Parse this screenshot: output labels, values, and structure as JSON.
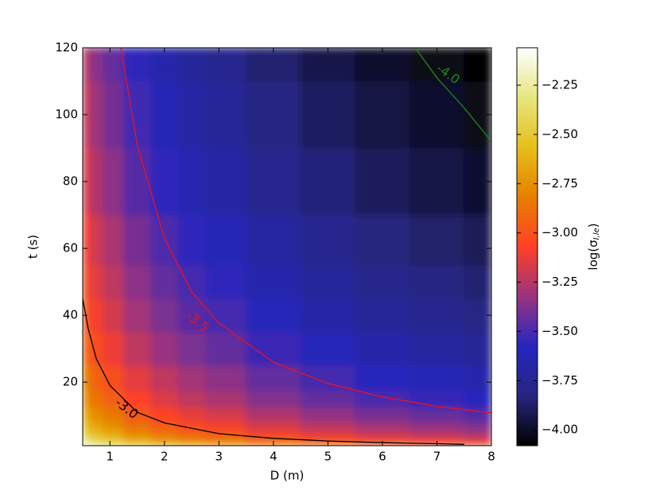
{
  "chart_data": {
    "type": "heatmap",
    "xlabel": "D (m)",
    "ylabel": "t (s)",
    "colorbar_label": [
      "log(σ",
      "I,le",
      ")"
    ],
    "x": [
      0.5,
      0.75,
      1,
      1.5,
      2,
      2.5,
      3,
      4,
      5,
      6,
      7,
      8
    ],
    "y": [
      1,
      2,
      3,
      5,
      7,
      10,
      15,
      20,
      30,
      40,
      50,
      60,
      80,
      100,
      120
    ],
    "z": [
      [
        -2.09,
        -2.21,
        -2.3,
        -2.42,
        -2.51,
        -2.58,
        -2.63,
        -2.72,
        -2.79,
        -2.85,
        -2.89,
        -2.93
      ],
      [
        -2.26,
        -2.38,
        -2.47,
        -2.59,
        -2.68,
        -2.75,
        -2.8,
        -2.89,
        -2.96,
        -3.02,
        -3.06,
        -3.1
      ],
      [
        -2.35,
        -2.47,
        -2.56,
        -2.68,
        -2.77,
        -2.84,
        -2.89,
        -2.98,
        -3.05,
        -3.11,
        -3.15,
        -3.19
      ],
      [
        -2.47,
        -2.59,
        -2.68,
        -2.8,
        -2.89,
        -2.96,
        -3.01,
        -3.1,
        -3.17,
        -3.23,
        -3.27,
        -3.31
      ],
      [
        -2.55,
        -2.67,
        -2.76,
        -2.88,
        -2.97,
        -3.04,
        -3.09,
        -3.18,
        -3.25,
        -3.31,
        -3.35,
        -3.39
      ],
      [
        -2.64,
        -2.76,
        -2.85,
        -2.97,
        -3.06,
        -3.13,
        -3.18,
        -3.27,
        -3.34,
        -3.4,
        -3.44,
        -3.48
      ],
      [
        -2.74,
        -2.86,
        -2.95,
        -3.07,
        -3.16,
        -3.23,
        -3.28,
        -3.37,
        -3.44,
        -3.5,
        -3.54,
        -3.58
      ],
      [
        -2.81,
        -2.93,
        -3.02,
        -3.14,
        -3.23,
        -3.3,
        -3.35,
        -3.44,
        -3.51,
        -3.57,
        -3.61,
        -3.65
      ],
      [
        -2.9,
        -3.02,
        -3.11,
        -3.23,
        -3.32,
        -3.39,
        -3.44,
        -3.53,
        -3.6,
        -3.66,
        -3.7,
        -3.74
      ],
      [
        -2.97,
        -3.09,
        -3.18,
        -3.3,
        -3.39,
        -3.46,
        -3.51,
        -3.6,
        -3.67,
        -3.73,
        -3.77,
        -3.81
      ],
      [
        -3.02,
        -3.14,
        -3.23,
        -3.35,
        -3.44,
        -3.51,
        -3.56,
        -3.65,
        -3.72,
        -3.78,
        -3.82,
        -3.86
      ],
      [
        -3.07,
        -3.19,
        -3.28,
        -3.4,
        -3.49,
        -3.56,
        -3.61,
        -3.7,
        -3.77,
        -3.83,
        -3.87,
        -3.91
      ],
      [
        -3.14,
        -3.26,
        -3.35,
        -3.47,
        -3.56,
        -3.63,
        -3.68,
        -3.77,
        -3.84,
        -3.9,
        -3.94,
        -3.98
      ],
      [
        -3.19,
        -3.31,
        -3.4,
        -3.52,
        -3.61,
        -3.68,
        -3.73,
        -3.82,
        -3.89,
        -3.95,
        -3.99,
        -4.03
      ],
      [
        -3.23,
        -3.35,
        -3.44,
        -3.56,
        -3.65,
        -3.72,
        -3.77,
        -3.86,
        -3.93,
        -3.99,
        -4.03,
        -4.07
      ]
    ],
    "xlim": [
      0.5,
      8
    ],
    "ylim": [
      1,
      120
    ],
    "xticks": [
      1,
      2,
      3,
      4,
      5,
      6,
      7,
      8
    ],
    "yticks": [
      20,
      40,
      60,
      80,
      100,
      120
    ],
    "zlim": [
      -4.08,
      -2.06
    ],
    "zticks": [
      {
        "value": -2.25,
        "label": "−2.25"
      },
      {
        "value": -2.5,
        "label": "−2.50"
      },
      {
        "value": -2.75,
        "label": "−2.75"
      },
      {
        "value": -3,
        "label": "−3.00"
      },
      {
        "value": -3.25,
        "label": "−3.25"
      },
      {
        "value": -3.5,
        "label": "−3.50"
      },
      {
        "value": -3.75,
        "label": "−3.75"
      },
      {
        "value": -4,
        "label": "−4.00"
      }
    ],
    "colormap": [
      "#000000",
      "#262680",
      "#2626bf",
      "#993380",
      "#ff4026",
      "#e68000",
      "#e6bf1a",
      "#e6e680",
      "#ffffff"
    ],
    "contours": [
      {
        "level": {
          "value": -3,
          "label": "-3.0"
        },
        "color": "#000000",
        "x": [
          0.5,
          0.6,
          0.75,
          1,
          1.5,
          2,
          3,
          4,
          5,
          6,
          7,
          7.5
        ],
        "y": [
          45,
          36,
          27,
          19,
          11,
          7.8,
          4.6,
          3.2,
          2.4,
          1.9,
          1.6,
          1.4
        ]
      },
      {
        "level": {
          "value": -3.5,
          "label": "-3.5"
        },
        "color": "#e8102a",
        "x": [
          1.2,
          1.5,
          2,
          2.5,
          3,
          4,
          5,
          6,
          7,
          8
        ],
        "y": [
          120,
          91,
          63,
          47,
          37.6,
          26,
          19.6,
          15.6,
          12.8,
          10.8
        ]
      },
      {
        "level": {
          "value": -4,
          "label": "-4.0"
        },
        "color": "#1a8a1a",
        "x": [
          6.6,
          7,
          7.5,
          8
        ],
        "y": [
          120,
          111,
          102,
          92
        ]
      }
    ]
  }
}
